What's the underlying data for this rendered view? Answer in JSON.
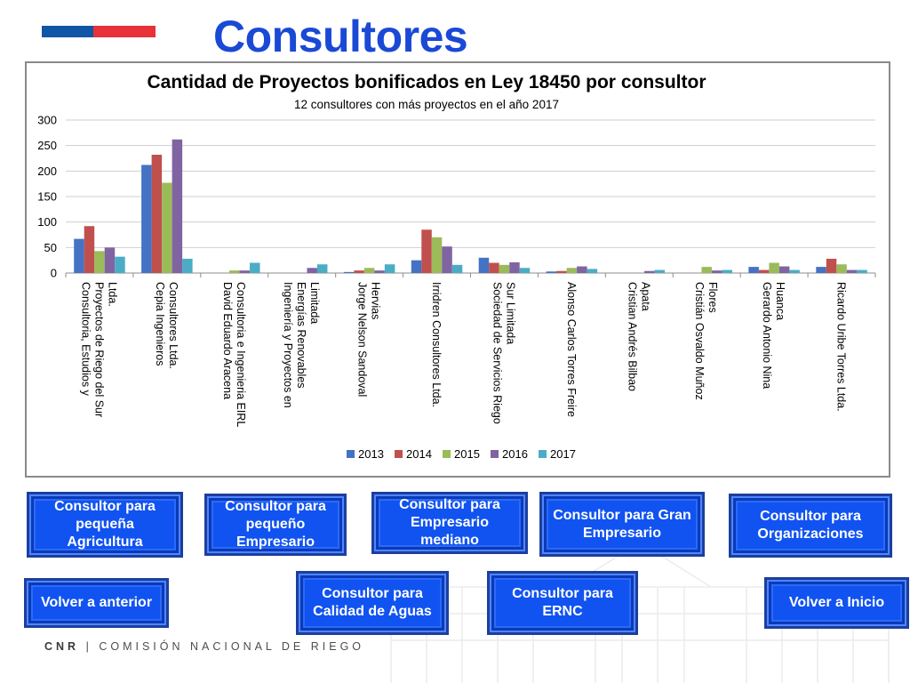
{
  "header": {
    "title": "Consultores",
    "flag_colors": [
      "#0f56a7",
      "#e63238"
    ]
  },
  "chart_data": {
    "type": "bar",
    "title": "Cantidad de Proyectos bonificados en Ley 18450 por consultor",
    "subtitle": "12 consultores con más proyectos en el año 2017",
    "ylim": [
      0,
      300
    ],
    "yticks": [
      0,
      50,
      100,
      150,
      200,
      250,
      300
    ],
    "grid": true,
    "legend_position": "bottom",
    "categories": [
      "Consultoria, Estudios y Proyectos de Riego del Sur Ltda.",
      "Cepia Ingenieros Consultores Ltda.",
      "David Eduardo Aracena Consultoria e Ingenieria EIRL",
      "Ingeniería y Proyectos en Energías Renovables Limitada",
      "Jorge Nelson Sandoval Hervias",
      "Irridren Consultores Ltda.",
      "Sociedad de Servicios Riego Sur Limitada",
      "Alonso Carlos Torres Freire",
      "Cristian Andrés Bilbao Apata",
      "Cristián Osvaldo Muñoz Flores",
      "Gerardo Antonio Nina Huanca",
      "Ricardo Uribe Torres Ltda."
    ],
    "category_lines": [
      [
        "Consultoria, Estudios y",
        "Proyectos de Riego del Sur",
        "Ltda."
      ],
      [
        "Cepia Ingenieros",
        "Consultores Ltda."
      ],
      [
        "David Eduardo Aracena",
        "Consultoria e Ingenieria EIRL"
      ],
      [
        "Ingeniería y Proyectos en",
        "Energías Renovables",
        "Limitada"
      ],
      [
        "Jorge Nelson Sandoval",
        "Hervias"
      ],
      [
        "Irridren Consultores Ltda."
      ],
      [
        "Sociedad de Servicios Riego",
        "Sur Limitada"
      ],
      [
        "Alonso Carlos Torres Freire"
      ],
      [
        "Cristian Andrés Bilbao",
        "Apata"
      ],
      [
        "Cristián Osvaldo Muñoz",
        "Flores"
      ],
      [
        "Gerardo Antonio Nina",
        "Huanca"
      ],
      [
        "Ricardo Uribe Torres Ltda."
      ]
    ],
    "series": [
      {
        "name": "2013",
        "color": "#4472c4",
        "values": [
          67,
          212,
          0,
          0,
          2,
          25,
          30,
          3,
          0,
          0,
          12,
          12
        ]
      },
      {
        "name": "2014",
        "color": "#c0504d",
        "values": [
          92,
          232,
          0,
          0,
          5,
          85,
          20,
          4,
          0,
          0,
          6,
          28
        ]
      },
      {
        "name": "2015",
        "color": "#9bbb59",
        "values": [
          43,
          177,
          5,
          0,
          10,
          70,
          16,
          10,
          0,
          12,
          20,
          17
        ]
      },
      {
        "name": "2016",
        "color": "#8064a2",
        "values": [
          50,
          262,
          5,
          10,
          5,
          52,
          21,
          13,
          4,
          5,
          13,
          6
        ]
      },
      {
        "name": "2017",
        "color": "#4bacc6",
        "values": [
          32,
          28,
          20,
          17,
          17,
          16,
          10,
          8,
          6,
          6,
          6,
          6
        ]
      }
    ]
  },
  "buttons": [
    {
      "key": "pequena-agricultura",
      "label": "Consultor para pequeña Agricultura"
    },
    {
      "key": "pequeno-empresario",
      "label": "Consultor para pequeño Empresario"
    },
    {
      "key": "empresario-mediano",
      "label": "Consultor para Empresario mediano"
    },
    {
      "key": "gran-empresario",
      "label": "Consultor para Gran Empresario"
    },
    {
      "key": "organizaciones",
      "label": "Consultor para Organizaciones"
    },
    {
      "key": "volver-anterior",
      "label": "Volver a anterior"
    },
    {
      "key": "calidad-aguas",
      "label": "Consultor para Calidad de Aguas"
    },
    {
      "key": "ernc",
      "label": "Consultor para ERNC"
    },
    {
      "key": "volver-inicio",
      "label": "Volver a Inicio"
    }
  ],
  "footer": {
    "org_short": "CNR",
    "separator": "|",
    "org_name": "COMISIÓN NACIONAL DE RIEGO"
  }
}
